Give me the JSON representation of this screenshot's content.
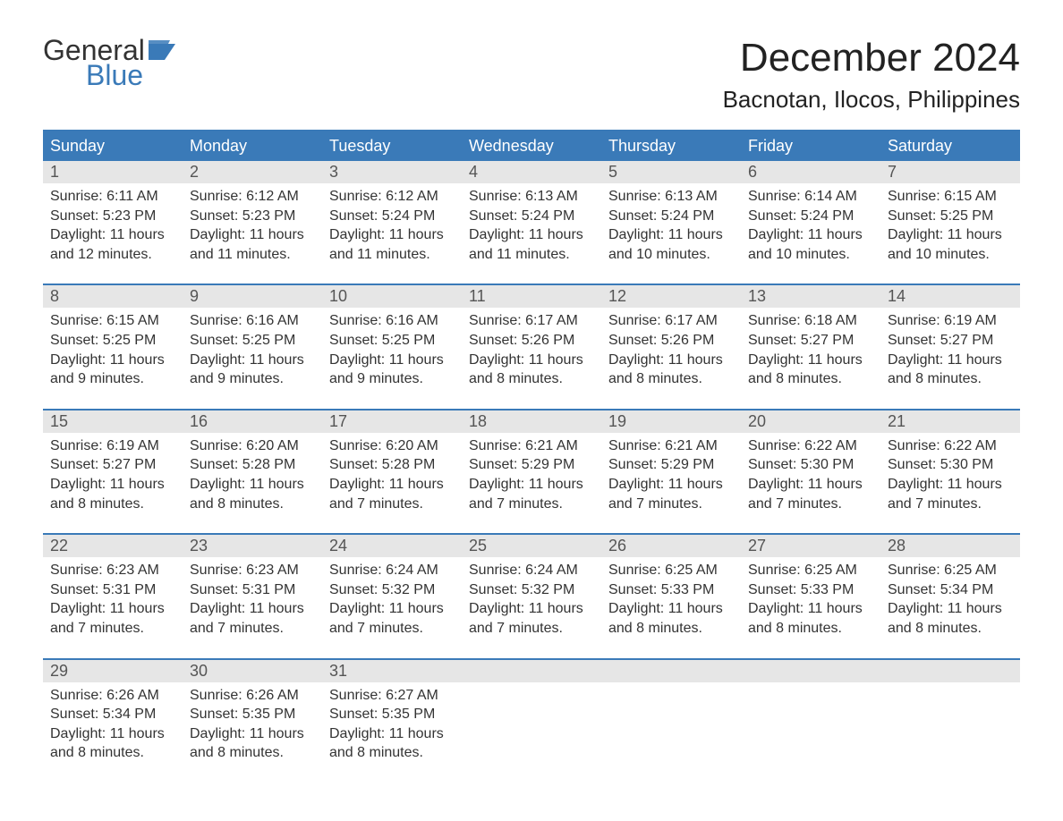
{
  "logo": {
    "line1": "General",
    "line2": "Blue",
    "flag_color": "#3a7ab8"
  },
  "title": "December 2024",
  "location": "Bacnotan, Ilocos, Philippines",
  "colors": {
    "header_bg": "#3a7ab8",
    "header_text": "#ffffff",
    "daynum_bg": "#e6e6e6",
    "text": "#333333",
    "page_bg": "#ffffff"
  },
  "typography": {
    "title_fontsize": 44,
    "location_fontsize": 26,
    "weekday_fontsize": 18,
    "body_fontsize": 16
  },
  "layout": {
    "columns": 7,
    "rows": 5
  },
  "weekdays": [
    "Sunday",
    "Monday",
    "Tuesday",
    "Wednesday",
    "Thursday",
    "Friday",
    "Saturday"
  ],
  "labels": {
    "sunrise": "Sunrise:",
    "sunset": "Sunset:",
    "daylight": "Daylight:"
  },
  "weeks": [
    [
      {
        "n": "1",
        "sr": "6:11 AM",
        "ss": "5:23 PM",
        "dl": "11 hours and 12 minutes."
      },
      {
        "n": "2",
        "sr": "6:12 AM",
        "ss": "5:23 PM",
        "dl": "11 hours and 11 minutes."
      },
      {
        "n": "3",
        "sr": "6:12 AM",
        "ss": "5:24 PM",
        "dl": "11 hours and 11 minutes."
      },
      {
        "n": "4",
        "sr": "6:13 AM",
        "ss": "5:24 PM",
        "dl": "11 hours and 11 minutes."
      },
      {
        "n": "5",
        "sr": "6:13 AM",
        "ss": "5:24 PM",
        "dl": "11 hours and 10 minutes."
      },
      {
        "n": "6",
        "sr": "6:14 AM",
        "ss": "5:24 PM",
        "dl": "11 hours and 10 minutes."
      },
      {
        "n": "7",
        "sr": "6:15 AM",
        "ss": "5:25 PM",
        "dl": "11 hours and 10 minutes."
      }
    ],
    [
      {
        "n": "8",
        "sr": "6:15 AM",
        "ss": "5:25 PM",
        "dl": "11 hours and 9 minutes."
      },
      {
        "n": "9",
        "sr": "6:16 AM",
        "ss": "5:25 PM",
        "dl": "11 hours and 9 minutes."
      },
      {
        "n": "10",
        "sr": "6:16 AM",
        "ss": "5:25 PM",
        "dl": "11 hours and 9 minutes."
      },
      {
        "n": "11",
        "sr": "6:17 AM",
        "ss": "5:26 PM",
        "dl": "11 hours and 8 minutes."
      },
      {
        "n": "12",
        "sr": "6:17 AM",
        "ss": "5:26 PM",
        "dl": "11 hours and 8 minutes."
      },
      {
        "n": "13",
        "sr": "6:18 AM",
        "ss": "5:27 PM",
        "dl": "11 hours and 8 minutes."
      },
      {
        "n": "14",
        "sr": "6:19 AM",
        "ss": "5:27 PM",
        "dl": "11 hours and 8 minutes."
      }
    ],
    [
      {
        "n": "15",
        "sr": "6:19 AM",
        "ss": "5:27 PM",
        "dl": "11 hours and 8 minutes."
      },
      {
        "n": "16",
        "sr": "6:20 AM",
        "ss": "5:28 PM",
        "dl": "11 hours and 8 minutes."
      },
      {
        "n": "17",
        "sr": "6:20 AM",
        "ss": "5:28 PM",
        "dl": "11 hours and 7 minutes."
      },
      {
        "n": "18",
        "sr": "6:21 AM",
        "ss": "5:29 PM",
        "dl": "11 hours and 7 minutes."
      },
      {
        "n": "19",
        "sr": "6:21 AM",
        "ss": "5:29 PM",
        "dl": "11 hours and 7 minutes."
      },
      {
        "n": "20",
        "sr": "6:22 AM",
        "ss": "5:30 PM",
        "dl": "11 hours and 7 minutes."
      },
      {
        "n": "21",
        "sr": "6:22 AM",
        "ss": "5:30 PM",
        "dl": "11 hours and 7 minutes."
      }
    ],
    [
      {
        "n": "22",
        "sr": "6:23 AM",
        "ss": "5:31 PM",
        "dl": "11 hours and 7 minutes."
      },
      {
        "n": "23",
        "sr": "6:23 AM",
        "ss": "5:31 PM",
        "dl": "11 hours and 7 minutes."
      },
      {
        "n": "24",
        "sr": "6:24 AM",
        "ss": "5:32 PM",
        "dl": "11 hours and 7 minutes."
      },
      {
        "n": "25",
        "sr": "6:24 AM",
        "ss": "5:32 PM",
        "dl": "11 hours and 7 minutes."
      },
      {
        "n": "26",
        "sr": "6:25 AM",
        "ss": "5:33 PM",
        "dl": "11 hours and 8 minutes."
      },
      {
        "n": "27",
        "sr": "6:25 AM",
        "ss": "5:33 PM",
        "dl": "11 hours and 8 minutes."
      },
      {
        "n": "28",
        "sr": "6:25 AM",
        "ss": "5:34 PM",
        "dl": "11 hours and 8 minutes."
      }
    ],
    [
      {
        "n": "29",
        "sr": "6:26 AM",
        "ss": "5:34 PM",
        "dl": "11 hours and 8 minutes."
      },
      {
        "n": "30",
        "sr": "6:26 AM",
        "ss": "5:35 PM",
        "dl": "11 hours and 8 minutes."
      },
      {
        "n": "31",
        "sr": "6:27 AM",
        "ss": "5:35 PM",
        "dl": "11 hours and 8 minutes."
      },
      null,
      null,
      null,
      null
    ]
  ]
}
